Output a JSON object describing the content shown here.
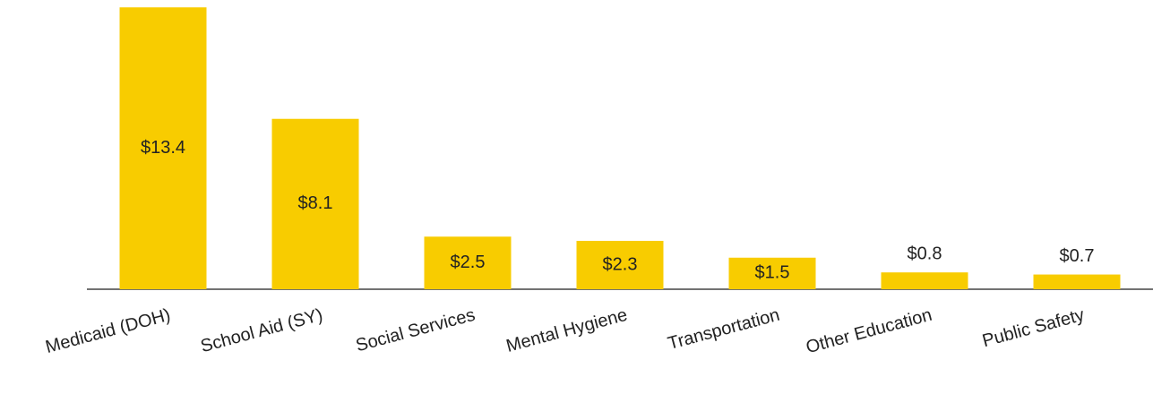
{
  "chart_data": {
    "type": "bar",
    "categories": [
      "Medicaid (DOH)",
      "School Aid (SY)",
      "Social Services",
      "Mental Hygiene",
      "Transportation",
      "Other Education",
      "Public Safety"
    ],
    "values": [
      13.4,
      8.1,
      2.5,
      2.3,
      1.5,
      0.8,
      0.7
    ],
    "value_labels": [
      "$13.4",
      "$8.1",
      "$2.5",
      "$2.3",
      "$1.5",
      "$0.8",
      "$0.7"
    ],
    "color": "#f8cc00",
    "ylim": [
      0,
      13.75
    ]
  }
}
